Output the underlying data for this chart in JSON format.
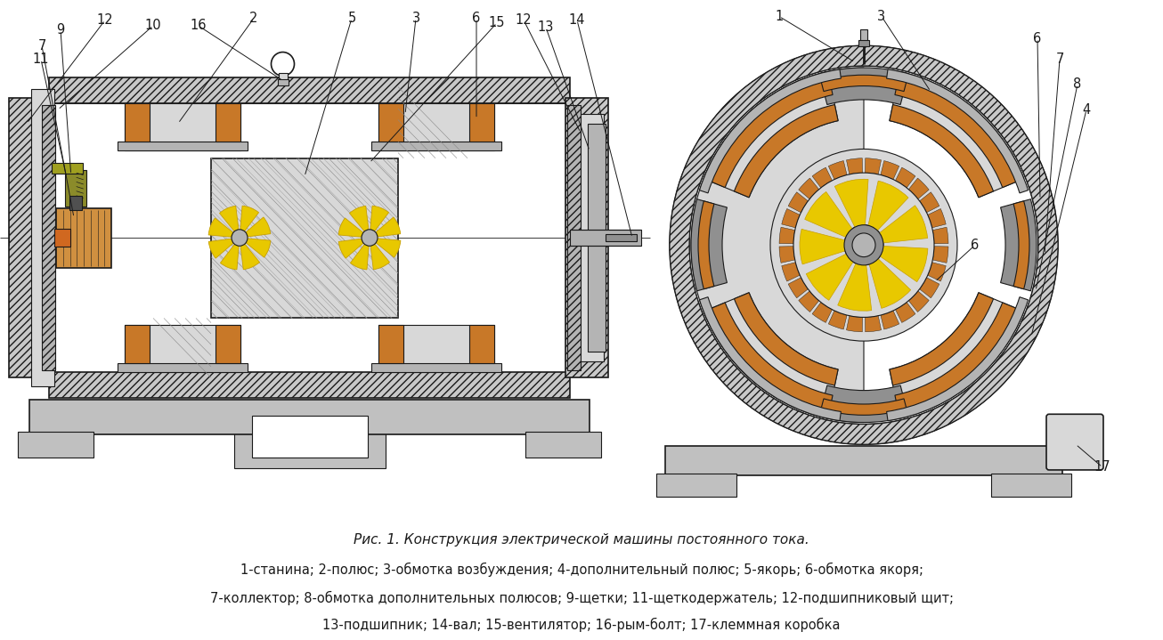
{
  "caption_line1": "Рис. 1. Конструкция электрической машины постоянного тока.",
  "caption_line2": "1-станина; 2-полюс; 3-обмотка возбуждения; 4-дополнительный полюс; 5-якорь; 6-обмотка якоря;",
  "caption_line3": "7-коллектор; 8-обмотка дополнительных полюсов; 9-щетки; 11-щеткодержатель; 12-подшипниковый щит;",
  "caption_line4": "13-подшипник; 14-вал; 15-вентилятор; 16-рым-болт; 17-клеммная коробка",
  "bg_color": "#ffffff",
  "gray_housing": "#c8c8c8",
  "gray_light": "#d8d8d8",
  "gray_dark": "#909090",
  "gray_med": "#b4b4b4",
  "coil_color": "#c87828",
  "coil_color2": "#c86820",
  "yellow": "#e8c800",
  "yellow_dark": "#c8a000",
  "orange_shaft": "#d06820",
  "black": "#1a1a1a",
  "fig_width": 13.06,
  "fig_height": 7.19,
  "dpi": 100
}
